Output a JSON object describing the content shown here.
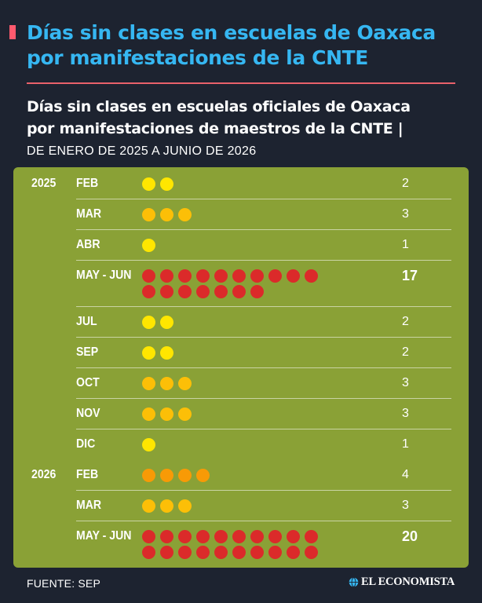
{
  "header": {
    "title_line1": "Días sin clases en escuelas de Oaxaca",
    "title_line2": "por manifestaciones de la CNTE"
  },
  "chart_data": {
    "type": "table",
    "title_line1": "Días sin clases en escuelas oficiales de Oaxaca",
    "title_line2": "por manifestaciones de maestros de la CNTE |",
    "subtitle": "DE ENERO DE 2025 A JUNIO DE 2026",
    "rows": [
      {
        "year": "2025",
        "month": "FEB",
        "value": 2,
        "value_label": "2",
        "color": "#ffe600",
        "emphasis": false
      },
      {
        "year": "",
        "month": "MAR",
        "value": 3,
        "value_label": "3",
        "color": "#fcbf07",
        "emphasis": false
      },
      {
        "year": "",
        "month": "ABR",
        "value": 1,
        "value_label": "1",
        "color": "#ffe600",
        "emphasis": false
      },
      {
        "year": "",
        "month": "MAY - JUN",
        "value": 17,
        "value_label": "17",
        "color": "#db2a2a",
        "emphasis": true
      },
      {
        "year": "",
        "month": "JUL",
        "value": 2,
        "value_label": "2",
        "color": "#ffe600",
        "emphasis": false
      },
      {
        "year": "",
        "month": "SEP",
        "value": 2,
        "value_label": "2",
        "color": "#ffe600",
        "emphasis": false
      },
      {
        "year": "",
        "month": "OCT",
        "value": 3,
        "value_label": "3",
        "color": "#fcbf07",
        "emphasis": false
      },
      {
        "year": "",
        "month": "NOV",
        "value": 3,
        "value_label": "3",
        "color": "#fcbf07",
        "emphasis": false
      },
      {
        "year": "",
        "month": "DIC",
        "value": 1,
        "value_label": "1",
        "color": "#ffe600",
        "emphasis": false
      },
      {
        "year": "2026",
        "month": "FEB",
        "value": 4,
        "value_label": "4",
        "color": "#f89a06",
        "emphasis": false
      },
      {
        "year": "",
        "month": "MAR",
        "value": 3,
        "value_label": "3",
        "color": "#fcbf07",
        "emphasis": false
      },
      {
        "year": "",
        "month": "MAY - JUN",
        "value": 20,
        "value_label": "20",
        "color": "#db2a2a",
        "emphasis": true
      }
    ]
  },
  "footer": {
    "source": "FUENTE: SEP",
    "brand": "EL ECONOMISTA",
    "brand_icon": "globe-icon"
  },
  "colors": {
    "background": "#1d2330",
    "panel": "#8aa136",
    "title": "#36b7f2",
    "accent": "#ff5a6e"
  }
}
